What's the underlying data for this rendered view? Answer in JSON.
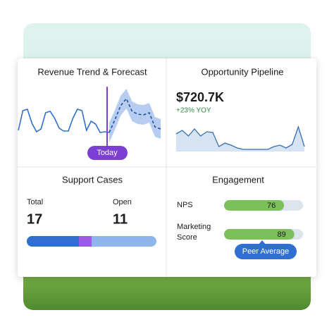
{
  "revenue": {
    "title": "Revenue Trend & Forecast",
    "today": "Today",
    "actual": [
      10,
      38,
      40,
      20,
      8,
      12,
      35,
      37,
      27,
      13,
      9,
      9,
      27,
      40,
      38,
      10,
      23,
      19,
      7,
      8,
      7
    ],
    "forecast": [
      7,
      25,
      45,
      55,
      37,
      33,
      32,
      35,
      15,
      12
    ]
  },
  "pipeline": {
    "title": "Opportunity Pipeline",
    "amount": "$720.7K",
    "change": "+23% YOY",
    "values": [
      25,
      30,
      22,
      32,
      22,
      28,
      27,
      7,
      12,
      9,
      5,
      3,
      3,
      3,
      3,
      3,
      7,
      9,
      5,
      10,
      35,
      7
    ]
  },
  "support": {
    "title": "Support Cases",
    "total_label": "Total",
    "total": 17,
    "open_label": "Open",
    "open": 11
  },
  "engagement": {
    "title": "Engagement",
    "metrics": [
      {
        "label": "NPS",
        "value": 76
      },
      {
        "label": "Marketing",
        "label2": "Score",
        "value": 89
      }
    ],
    "peer": "Peer Average"
  }
}
